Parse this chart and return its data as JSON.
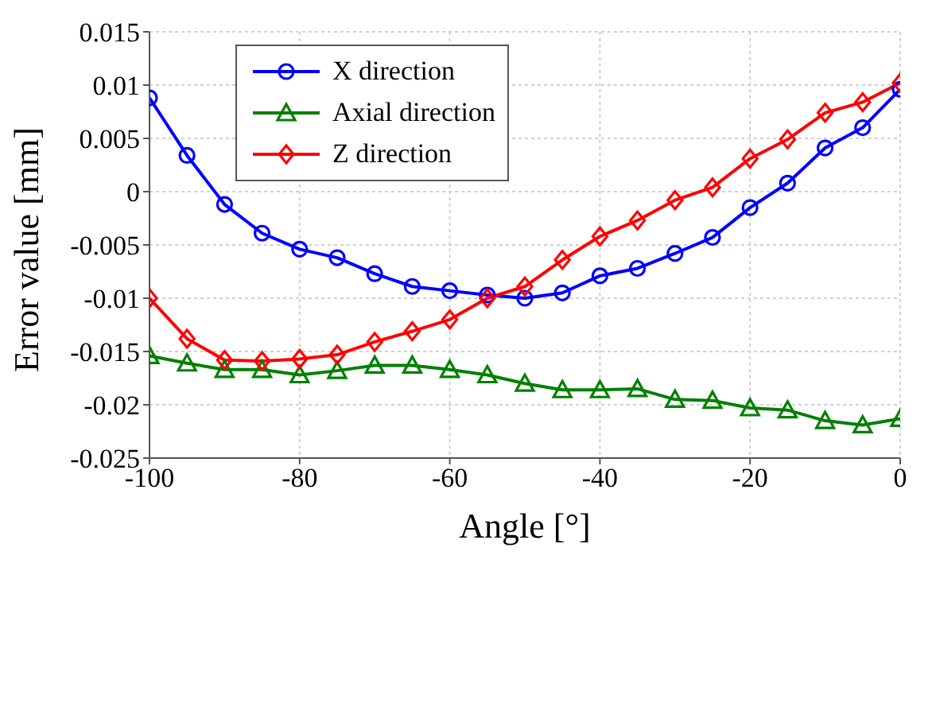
{
  "chart_data": {
    "type": "line",
    "xlabel": "Angle [°]",
    "ylabel": "Error value [mm]",
    "x": [
      -100,
      -95,
      -90,
      -85,
      -80,
      -75,
      -70,
      -65,
      -60,
      -55,
      -50,
      -45,
      -40,
      -35,
      -30,
      -25,
      -20,
      -15,
      -10,
      -5,
      0
    ],
    "series": [
      {
        "name": "X direction",
        "color": "#0000ff",
        "marker": "circle",
        "values": [
          0.0088,
          0.0034,
          -0.0012,
          -0.0039,
          -0.0054,
          -0.0062,
          -0.0077,
          -0.0089,
          -0.0093,
          -0.0097,
          -0.01,
          -0.0095,
          -0.0079,
          -0.0072,
          -0.0058,
          -0.0043,
          -0.0015,
          0.0008,
          0.0041,
          0.006,
          0.0096
        ]
      },
      {
        "name": "Axial direction",
        "color": "#008000",
        "marker": "triangle",
        "values": [
          -0.0154,
          -0.0161,
          -0.0167,
          -0.0167,
          -0.0172,
          -0.0168,
          -0.0163,
          -0.0163,
          -0.0167,
          -0.0172,
          -0.018,
          -0.0186,
          -0.0186,
          -0.0185,
          -0.0195,
          -0.0196,
          -0.0203,
          -0.0205,
          -0.0215,
          -0.0219,
          -0.0213
        ]
      },
      {
        "name": "Z direction",
        "color": "#ff0000",
        "marker": "diamond",
        "values": [
          -0.01,
          -0.0138,
          -0.0158,
          -0.0159,
          -0.0157,
          -0.0153,
          -0.0141,
          -0.0131,
          -0.012,
          -0.01,
          -0.0089,
          -0.0064,
          -0.0042,
          -0.0027,
          -0.0008,
          0.0004,
          0.0031,
          0.0049,
          0.0074,
          0.0084,
          0.0102
        ]
      }
    ],
    "xlim": [
      -100,
      0
    ],
    "xticks": [
      -100,
      -80,
      -60,
      -40,
      -20,
      0
    ],
    "ylim": [
      -0.025,
      0.015
    ],
    "yticks": [
      -0.025,
      -0.02,
      -0.015,
      -0.01,
      -0.005,
      0,
      0.005,
      0.01,
      0.015
    ],
    "grid": true,
    "legend": "top left",
    "line_style": "solid"
  }
}
